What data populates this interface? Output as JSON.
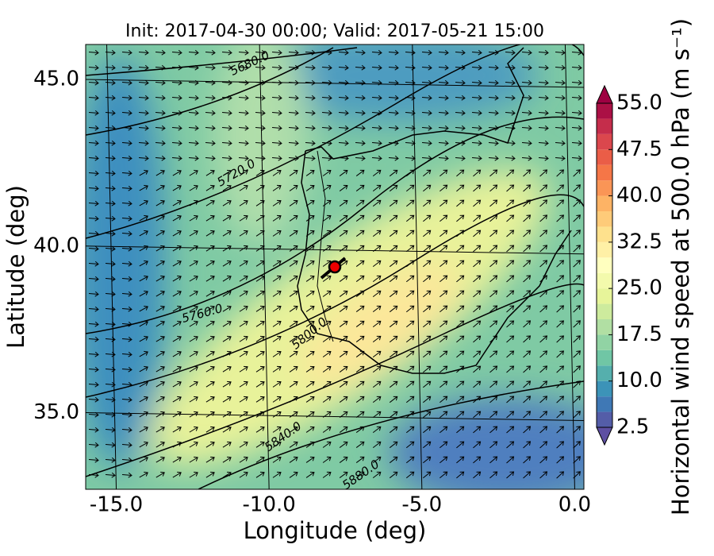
{
  "map": {
    "title": "Init: 2017-04-30 00:00; Valid: 2017-05-21 15:00",
    "xlabel": "Longitude (deg)",
    "ylabel": "Latitude (deg)",
    "xlim": [
      -16.0,
      0.3
    ],
    "ylim": [
      32.7,
      46.05
    ],
    "xticks": [
      {
        "value": -15,
        "label": "-15.0"
      },
      {
        "value": -10,
        "label": "-10.0"
      },
      {
        "value": -5,
        "label": "-5.0"
      },
      {
        "value": 0,
        "label": "0.0"
      }
    ],
    "yticks": [
      {
        "value": 35,
        "label": "35.0"
      },
      {
        "value": 40,
        "label": "40.0"
      },
      {
        "value": 45,
        "label": "45.0"
      }
    ],
    "contour_labels": [
      "5680.0",
      "5720.0",
      "5760.0",
      "5800.0",
      "5840.0",
      "5880.0"
    ],
    "colorbar": {
      "label": "Horizontal wind speed at 500.0 hPa (m s⁻¹)",
      "lim": [
        2.5,
        55
      ],
      "ticks": [
        2.5,
        {
          "value": 10,
          "label": "10.0"
        },
        17.5,
        {
          "value": 25,
          "label": "25.0"
        },
        32.5,
        {
          "value": 40,
          "label": "40.0"
        },
        47.5,
        {
          "value": 55,
          "label": "55.0"
        }
      ],
      "colors": [
        "#5e4fa2",
        "#3288bd",
        "#66c2a5",
        "#abdda4",
        "#e6f598",
        "#ffffbf",
        "#fee08b",
        "#fdae61",
        "#f46d43",
        "#d53e4f",
        "#9e0142"
      ]
    }
  }
}
